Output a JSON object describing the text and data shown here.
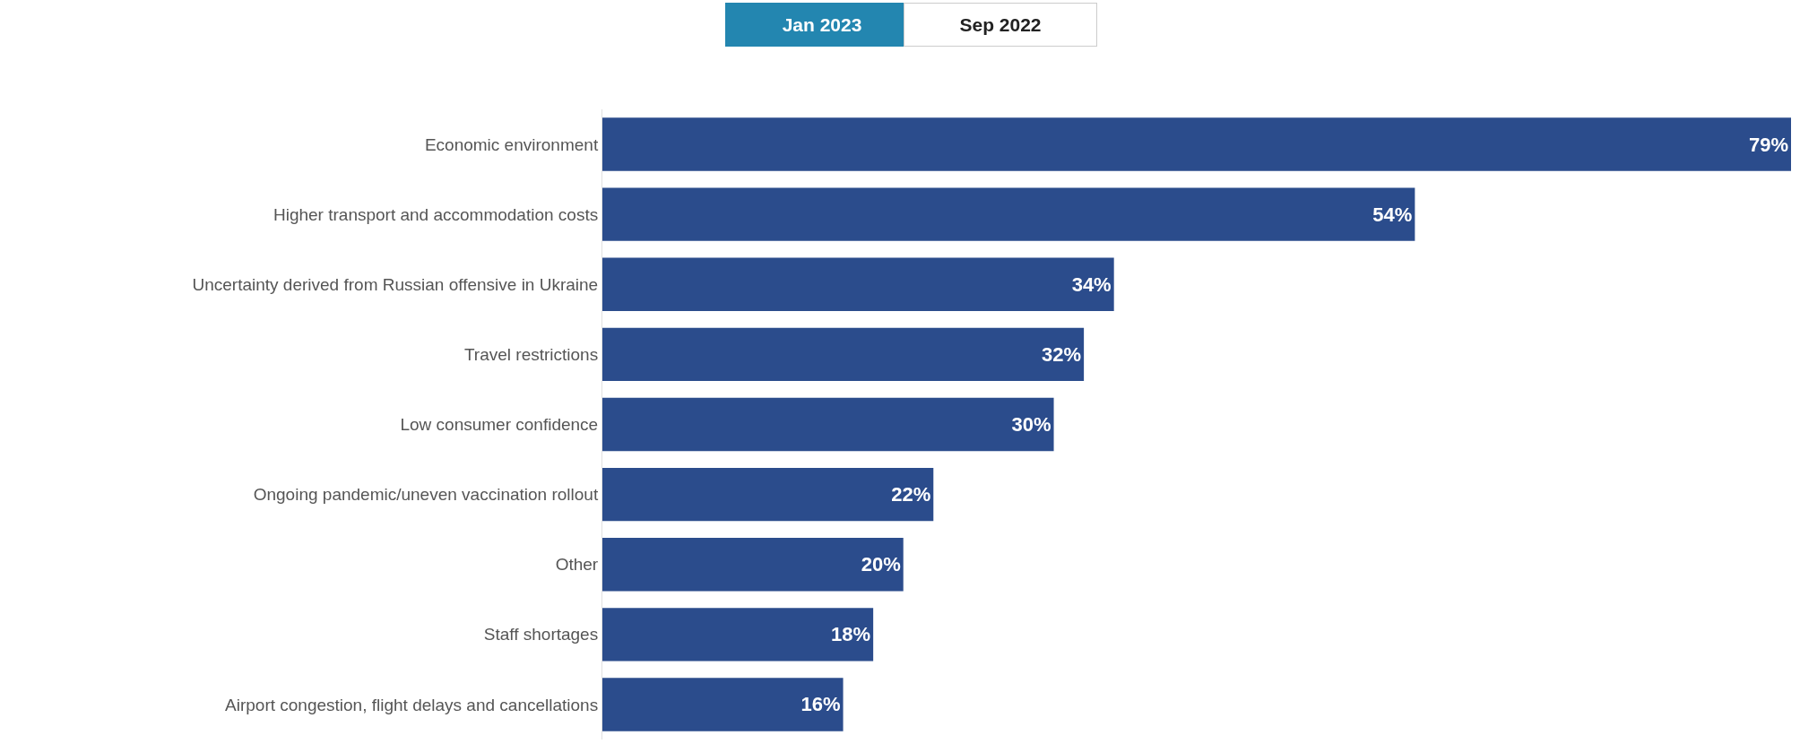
{
  "chart_data": {
    "type": "bar",
    "orientation": "horizontal",
    "categories": [
      "Economic environment",
      "Higher transport and accommodation costs",
      "Uncertainty derived from Russian offensive in Ukraine",
      "Travel restrictions",
      "Low consumer confidence",
      "Ongoing pandemic/uneven vaccination rollout",
      "Other",
      "Staff shortages",
      "Airport congestion, flight delays and cancellations"
    ],
    "values": [
      79,
      54,
      34,
      32,
      30,
      22,
      20,
      18,
      16
    ],
    "value_labels": [
      "79%",
      "54%",
      "34%",
      "32%",
      "30%",
      "22%",
      "20%",
      "18%",
      "16%"
    ],
    "color": "#2b4c8c",
    "annotations": [
      "Jan 2023",
      "Sep 2022"
    ],
    "legend": false
  }
}
